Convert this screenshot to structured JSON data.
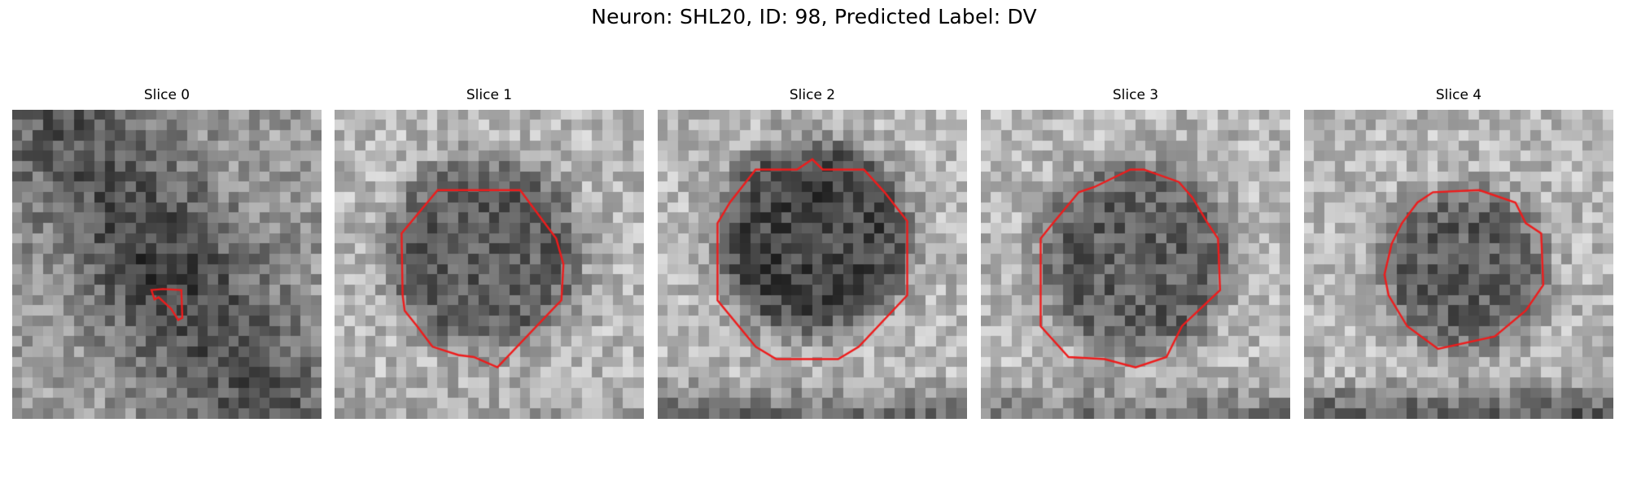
{
  "figure": {
    "title": "Neuron: SHL20, ID: 98, Predicted Label: DV"
  },
  "outline_color": "#ee1c1c",
  "panels": [
    {
      "title": "Slice 0",
      "description": "grayscale EM slice, small red contour near center",
      "outline": "small"
    },
    {
      "title": "Slice 1",
      "description": "grayscale EM slice, dark round cell with red contour",
      "outline": "large"
    },
    {
      "title": "Slice 2",
      "description": "grayscale EM slice, dark round cell with red contour",
      "outline": "large"
    },
    {
      "title": "Slice 3",
      "description": "grayscale EM slice, dark round cell with red contour",
      "outline": "large"
    },
    {
      "title": "Slice 4",
      "description": "grayscale EM slice, dark round cell with red contour",
      "outline": "large"
    }
  ]
}
